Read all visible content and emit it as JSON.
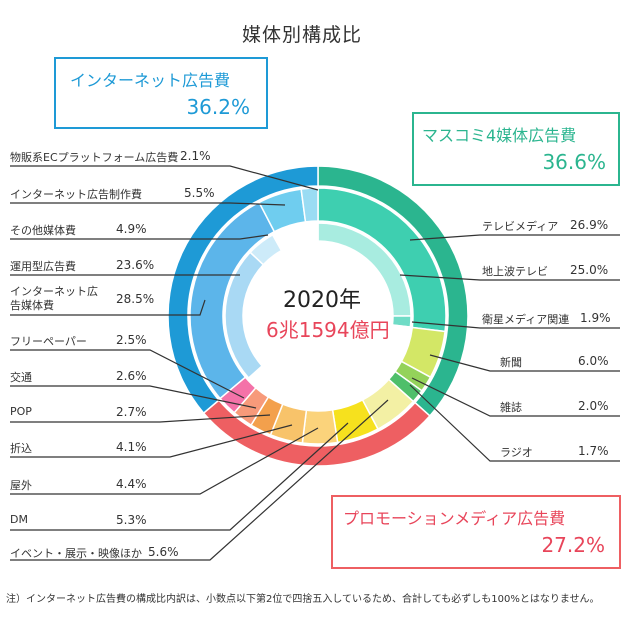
{
  "title": "媒体別構成比",
  "center": {
    "year": "2020年",
    "total": "6兆1594億円"
  },
  "note": "注）インターネット広告費の構成比内訳は、小数点以下第2位で四捨五入しているため、合計しても必ずしも100%とはなりません。",
  "categories": {
    "masscomm": {
      "name": "マスコミ4媒体広告費",
      "value": "36.6%",
      "color": "#2bb58f"
    },
    "promo": {
      "name": "プロモーションメディア広告費",
      "value": "27.2%",
      "color": "#ee5f62"
    },
    "internet": {
      "name": "インターネット広告費",
      "value": "36.2%",
      "color": "#1e9ad6"
    }
  },
  "labels": {
    "tv_media": {
      "name": "テレビメディア",
      "value": "26.9%"
    },
    "tv_terrestrial": {
      "name": "地上波テレビ",
      "value": "25.0%"
    },
    "tv_satellite": {
      "name": "衛星メディア関連",
      "value": "1.9%"
    },
    "newspaper": {
      "name": "新聞",
      "value": "6.0%"
    },
    "magazine": {
      "name": "雑誌",
      "value": "2.0%"
    },
    "radio": {
      "name": "ラジオ",
      "value": "1.7%"
    },
    "ec_platform": {
      "name": "物販系ECプラットフォーム広告費",
      "value": "2.1%"
    },
    "net_production": {
      "name": "インターネット広告制作費",
      "value": "5.5%"
    },
    "other_media": {
      "name": "その他媒体費",
      "value": "4.9%"
    },
    "operational": {
      "name": "運用型広告費",
      "value": "23.6%"
    },
    "net_media": {
      "name": "インターネット広告媒体費",
      "value": "28.5%"
    },
    "free_paper": {
      "name": "フリーペーパー",
      "value": "2.5%"
    },
    "transit": {
      "name": "交通",
      "value": "2.6%"
    },
    "pop": {
      "name": "POP",
      "value": "2.7%"
    },
    "insert": {
      "name": "折込",
      "value": "4.1%"
    },
    "outdoor": {
      "name": "屋外",
      "value": "4.4%"
    },
    "dm": {
      "name": "DM",
      "value": "5.3%"
    },
    "events": {
      "name": "イベント・展示・映像ほか",
      "value": "5.6%"
    }
  },
  "chart_data": {
    "type": "pie",
    "title": "媒体別構成比",
    "rings": [
      {
        "ring": "outer",
        "slices": [
          {
            "name": "マスコミ4媒体広告費",
            "value": 36.6,
            "color": "#2bb58f"
          },
          {
            "name": "プロモーションメディア広告費",
            "value": 27.2,
            "color": "#ee5f62"
          },
          {
            "name": "インターネット広告費",
            "value": 36.2,
            "color": "#1e9ad6"
          }
        ]
      },
      {
        "ring": "middle",
        "slices": [
          {
            "name": "テレビメディア",
            "value": 26.9,
            "color": "#3ecfb0"
          },
          {
            "name": "新聞",
            "value": 6.0,
            "color": "#d3e766"
          },
          {
            "name": "雑誌",
            "value": 2.0,
            "color": "#94d25a"
          },
          {
            "name": "ラジオ",
            "value": 1.7,
            "color": "#4fbf6a"
          },
          {
            "name": "イベント・展示・映像ほか",
            "value": 5.6,
            "color": "#f3f0a4"
          },
          {
            "name": "DM",
            "value": 5.3,
            "color": "#f6e11e"
          },
          {
            "name": "屋外",
            "value": 4.4,
            "color": "#fbd37b"
          },
          {
            "name": "折込",
            "value": 4.1,
            "color": "#f8c36a"
          },
          {
            "name": "POP",
            "value": 2.7,
            "color": "#f3a04c"
          },
          {
            "name": "交通",
            "value": 2.6,
            "color": "#f79a7a"
          },
          {
            "name": "フリーペーパー",
            "value": 2.5,
            "color": "#f472a8"
          },
          {
            "name": "インターネット広告媒体費",
            "value": 28.5,
            "color": "#5cb5ea"
          },
          {
            "name": "インターネット広告制作費",
            "value": 5.5,
            "color": "#6fcdef"
          },
          {
            "name": "物販系ECプラットフォーム広告費",
            "value": 2.1,
            "color": "#9adcf3"
          }
        ]
      },
      {
        "ring": "inner",
        "slices": [
          {
            "name": "地上波テレビ",
            "value": 25.0,
            "color": "#a8ece0"
          },
          {
            "name": "衛星メディア関連",
            "value": 1.9,
            "color": "#6fdcc6"
          },
          {
            "name": "",
            "value": 36.5,
            "color": "#ffffff"
          },
          {
            "name": "運用型広告費",
            "value": 23.6,
            "color": "#a9d9f4"
          },
          {
            "name": "その他媒体費",
            "value": 4.9,
            "color": "#cdebf9"
          },
          {
            "name": "",
            "value": 8.1,
            "color": "#ffffff"
          }
        ]
      }
    ]
  }
}
